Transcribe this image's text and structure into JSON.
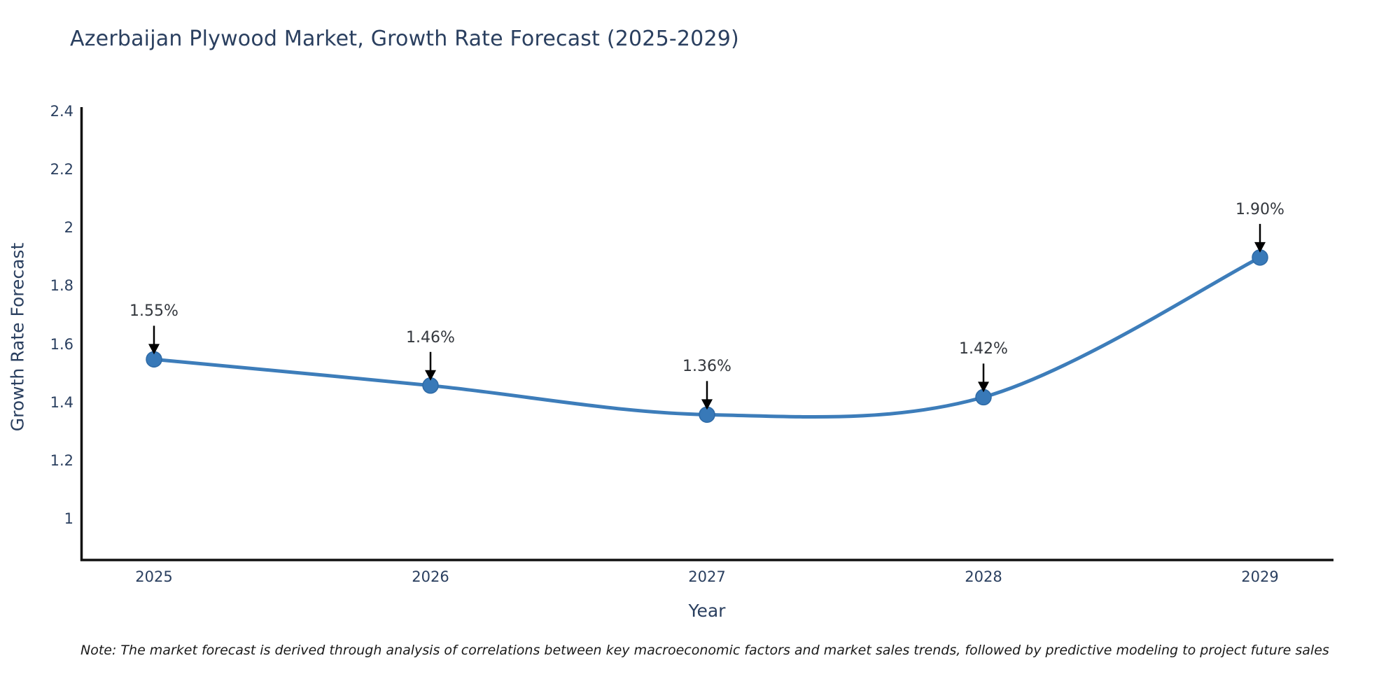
{
  "title": "Azerbaijan Plywood Market, Growth Rate Forecast (2025-2029)",
  "note": "Note: The market forecast is derived through analysis of correlations between key macroeconomic factors and market sales trends, followed by predictive modeling to project future sales",
  "chart_data": {
    "type": "line",
    "line_shape": "spline",
    "title": "Azerbaijan Plywood Market, Growth Rate Forecast (2025-2029)",
    "xlabel": "Year",
    "ylabel": "Growth Rate Forecast",
    "x": [
      2025,
      2026,
      2027,
      2028,
      2029
    ],
    "values": [
      1.55,
      1.46,
      1.36,
      1.42,
      1.9
    ],
    "point_labels": [
      "1.55%",
      "1.46%",
      "1.36%",
      "1.42%",
      "1.90%"
    ],
    "xticks": [
      "2025",
      "2026",
      "2027",
      "2028",
      "2029"
    ],
    "yticks": [
      1,
      1.2,
      1.4,
      1.6,
      1.8,
      2,
      2.2,
      2.4
    ],
    "ylim": [
      0.86,
      2.42
    ],
    "grid": false,
    "legend": "none",
    "colors": {
      "line": "#3d7dba",
      "marker_fill": "#3879b8",
      "marker_edge": "#2e6aa6",
      "axis": "#111111",
      "text": "#2a3f5f",
      "annotation_text": "#33373d",
      "annotation_arrow": "#000000",
      "background": "#ffffff"
    }
  }
}
